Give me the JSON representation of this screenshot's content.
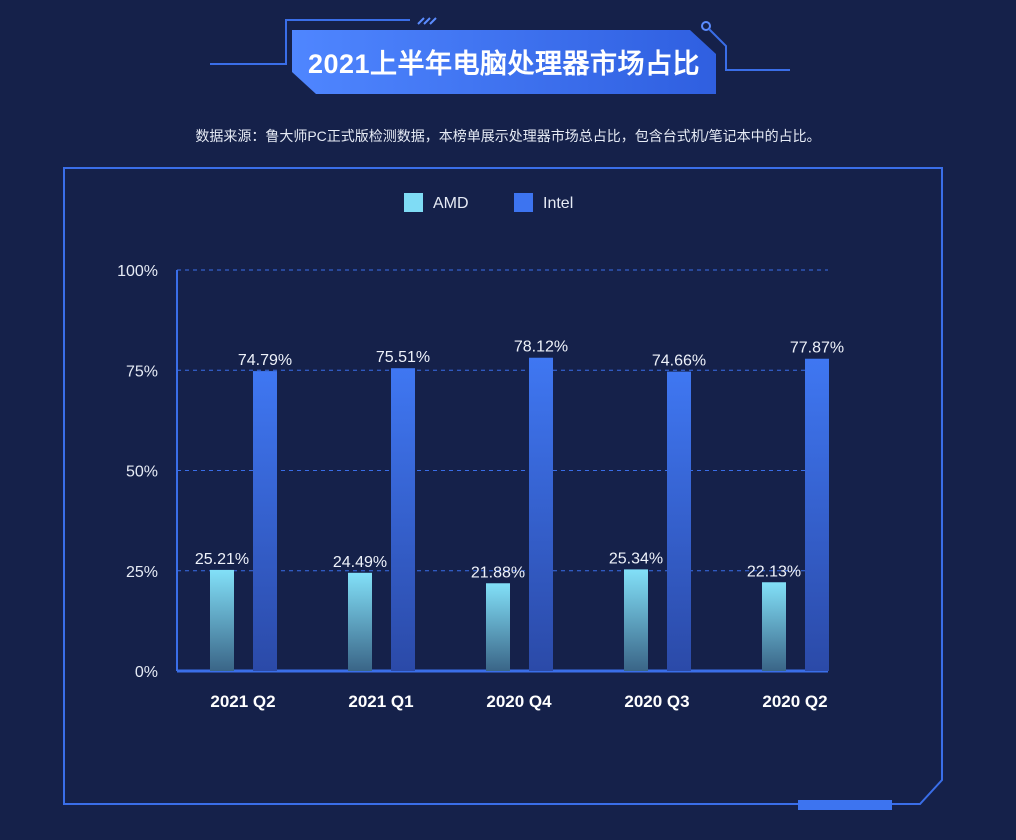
{
  "title": "2021上半年电脑处理器市场占比",
  "subtitle": "数据来源：鲁大师PC正式版检测数据，本榜单展示处理器市场总占比，包含台式机/笔记本中的占比。",
  "colors": {
    "background": "#15214a",
    "amd": "#7fdcf5",
    "intel": "#3d74f0",
    "frame": "#3a6ee8"
  },
  "chart_data": {
    "type": "bar",
    "title": "2021上半年电脑处理器市场占比",
    "categories": [
      "2021 Q2",
      "2021 Q1",
      "2020 Q4",
      "2020 Q3",
      "2020 Q2"
    ],
    "series": [
      {
        "name": "AMD",
        "values": [
          25.21,
          24.49,
          21.88,
          25.34,
          22.13
        ],
        "labels": [
          "25.21%",
          "24.49%",
          "21.88%",
          "25.34%",
          "22.13%"
        ]
      },
      {
        "name": "Intel",
        "values": [
          74.79,
          75.51,
          78.12,
          74.66,
          77.87
        ],
        "labels": [
          "74.79%",
          "75.51%",
          "78.12%",
          "74.66%",
          "77.87%"
        ]
      }
    ],
    "yticks": [
      "0%",
      "25%",
      "50%",
      "75%",
      "100%"
    ],
    "ylim": [
      0,
      100
    ],
    "grid": true,
    "legend": "top-center"
  }
}
